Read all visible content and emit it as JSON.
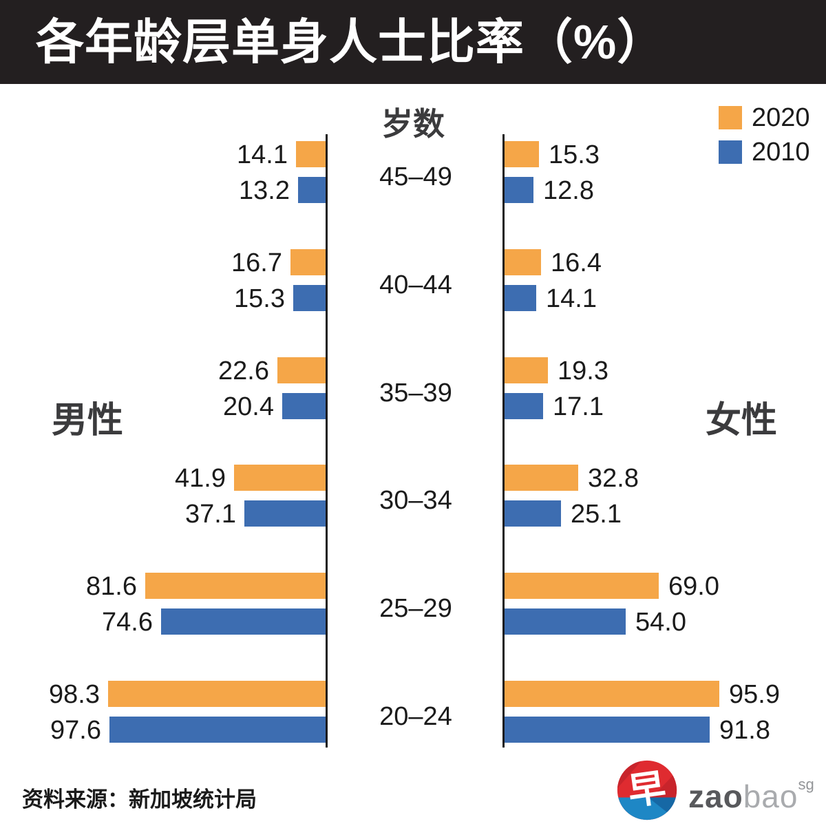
{
  "title": "各年龄层单身人士比率（%）",
  "axis_title": "岁数",
  "left_section_label": "男性",
  "right_section_label": "女性",
  "source": "资料来源：新加坡统计局",
  "legend": {
    "items": [
      {
        "label": "2020",
        "color": "#f5a648"
      },
      {
        "label": "2010",
        "color": "#3d6db1"
      }
    ]
  },
  "logo": {
    "glyph": "早",
    "zao": "zao",
    "bao": "bao",
    "sg": "sg",
    "red": "#df2b30",
    "dark_red": "#c8242b",
    "blue": "#1e87c5",
    "dark_blue": "#1668a5"
  },
  "chart_data": {
    "type": "bar",
    "layout": "horizontal back-to-back pyramid, male left / female right, age groups in center",
    "title": "各年龄层单身人士比率（%）",
    "categories": [
      "45–49",
      "40–44",
      "35–39",
      "30–34",
      "25–29",
      "20–24"
    ],
    "series": [
      {
        "name": "男性 2020",
        "side": "male",
        "year": "2020",
        "color": "#f5a648",
        "values": [
          14.1,
          16.7,
          22.6,
          41.9,
          81.6,
          98.3
        ]
      },
      {
        "name": "男性 2010",
        "side": "male",
        "year": "2010",
        "color": "#3d6db1",
        "values": [
          13.2,
          15.3,
          20.4,
          37.1,
          74.6,
          97.6
        ]
      },
      {
        "name": "女性 2020",
        "side": "female",
        "year": "2020",
        "color": "#f5a648",
        "values": [
          15.3,
          16.4,
          19.3,
          32.8,
          69.0,
          95.9
        ]
      },
      {
        "name": "女性 2010",
        "side": "female",
        "year": "2010",
        "color": "#3d6db1",
        "values": [
          12.8,
          14.1,
          17.1,
          25.1,
          54.0,
          91.8
        ]
      }
    ],
    "value_axis": {
      "min": 0,
      "max": 100,
      "unit": "%"
    },
    "value_labels": "one decimal, outside bar end",
    "grid": false,
    "legend_position": "top-right"
  }
}
